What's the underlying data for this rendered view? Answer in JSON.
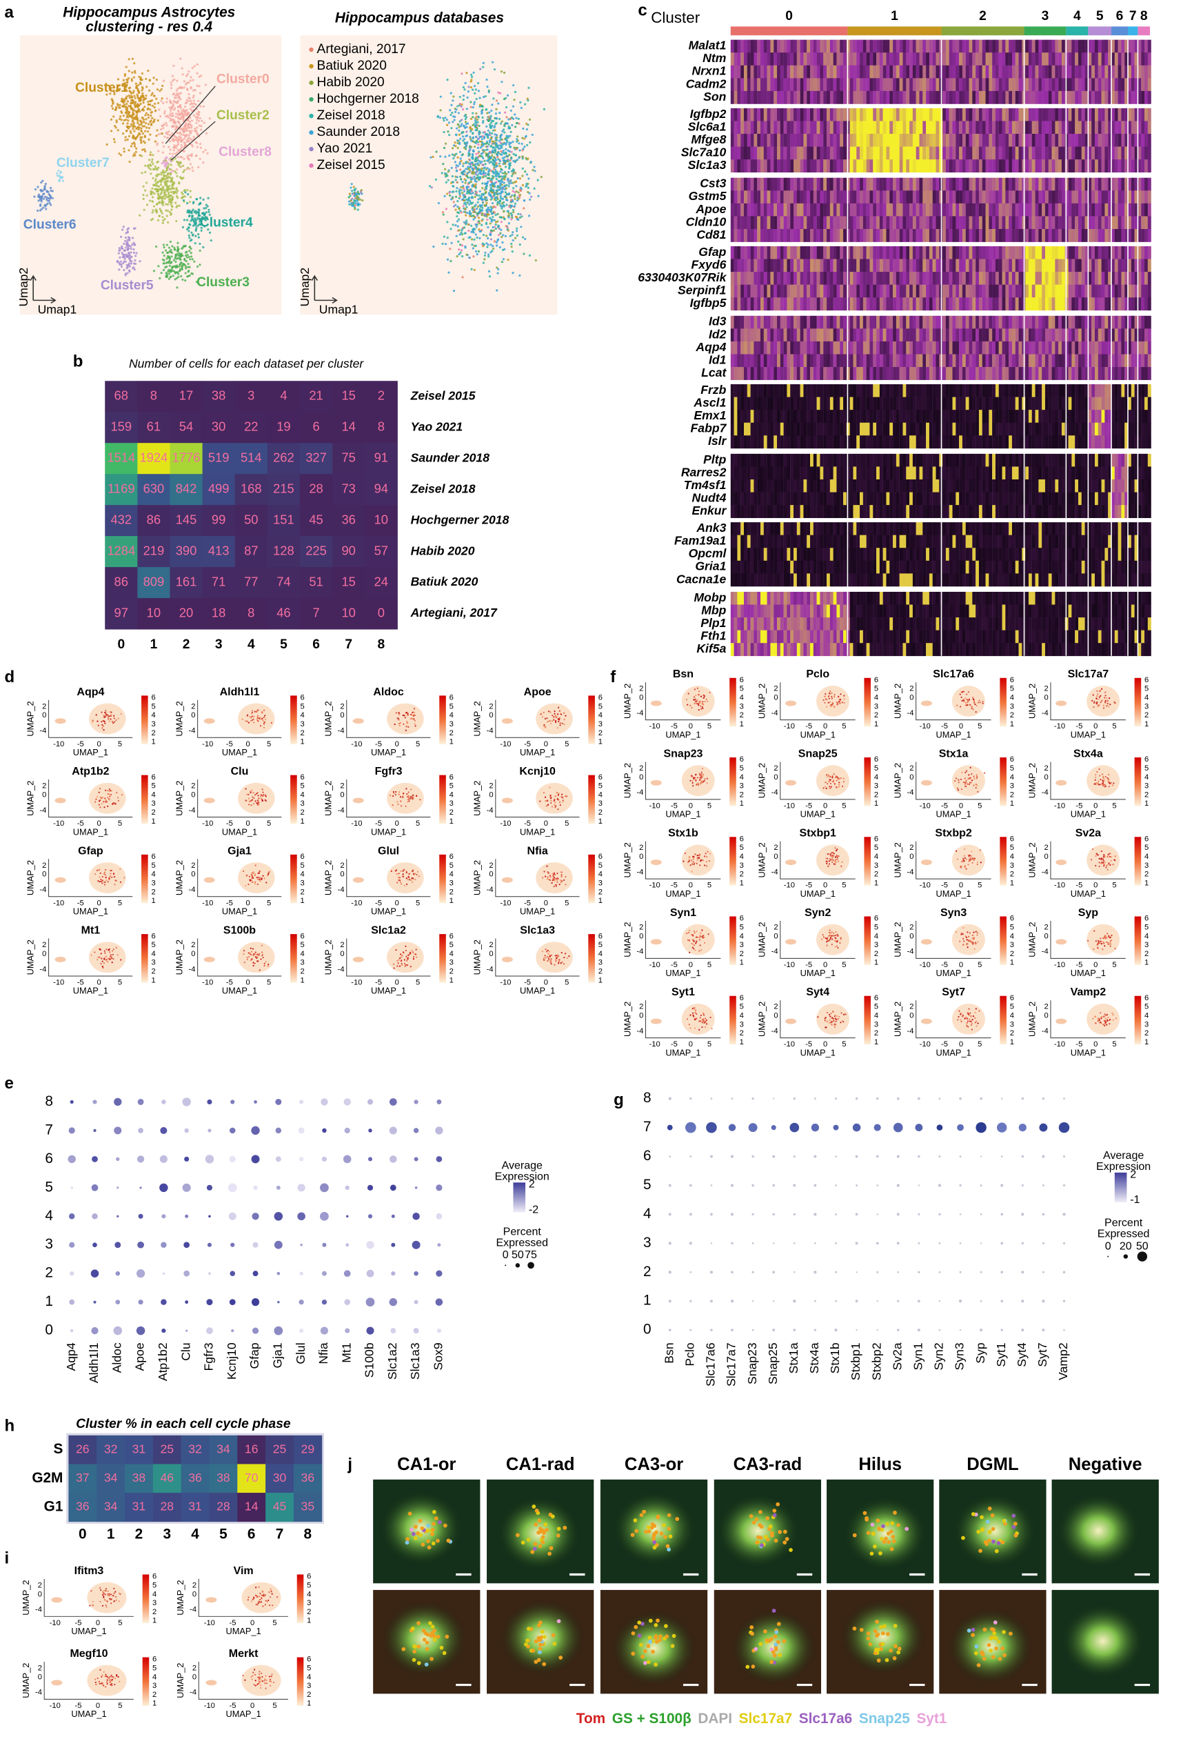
{
  "panel_a": {
    "label": "a",
    "left": {
      "title": [
        "Hippocampus Astrocytes",
        "clustering - res 0.4"
      ],
      "x_axis": "Umap1",
      "y_axis": "Umap2",
      "clusters": [
        {
          "name": "Cluster0",
          "color": "#f4a9a0"
        },
        {
          "name": "Cluster1",
          "color": "#c8901a"
        },
        {
          "name": "Cluster2",
          "color": "#a8bf4c"
        },
        {
          "name": "Cluster3",
          "color": "#4caf50"
        },
        {
          "name": "Cluster4",
          "color": "#22a698"
        },
        {
          "name": "Cluster5",
          "color": "#a78bd0"
        },
        {
          "name": "Cluster6",
          "color": "#5b87c9"
        },
        {
          "name": "Cluster7",
          "color": "#8fd4ee"
        },
        {
          "name": "Cluster8",
          "color": "#e3a6d5"
        }
      ]
    },
    "right": {
      "title": "Hippocampus databases",
      "x_axis": "Umap1",
      "y_axis": "Umap2",
      "datasets": [
        {
          "name": "Artegiani, 2017",
          "color": "#e8836c"
        },
        {
          "name": "Batiuk 2020",
          "color": "#c8961e"
        },
        {
          "name": "Habib 2020",
          "color": "#8aa63c"
        },
        {
          "name": "Hochgerner 2018",
          "color": "#3aaa6c"
        },
        {
          "name": "Zeisel 2018",
          "color": "#30b3a8"
        },
        {
          "name": "Saunder 2018",
          "color": "#3ca3d8"
        },
        {
          "name": "Yao 2021",
          "color": "#9583c9"
        },
        {
          "name": "Zeisel 2015",
          "color": "#e57cb8"
        }
      ]
    }
  },
  "panel_b": {
    "label": "b",
    "title": "Number of cells for each dataset per cluster",
    "columns": [
      0,
      1,
      2,
      3,
      4,
      5,
      6,
      7,
      8
    ],
    "rows": [
      {
        "name": "Zeisel 2015",
        "values": [
          68,
          8,
          17,
          38,
          3,
          4,
          21,
          15,
          2
        ]
      },
      {
        "name": "Yao 2021",
        "values": [
          159,
          61,
          54,
          30,
          22,
          19,
          6,
          14,
          8
        ]
      },
      {
        "name": "Saunder 2018",
        "values": [
          1514,
          1924,
          1776,
          519,
          514,
          262,
          327,
          75,
          91
        ]
      },
      {
        "name": "Zeisel 2018",
        "values": [
          1169,
          630,
          842,
          499,
          168,
          215,
          28,
          73,
          94
        ]
      },
      {
        "name": "Hochgerner 2018",
        "values": [
          432,
          86,
          145,
          99,
          50,
          151,
          45,
          36,
          10
        ]
      },
      {
        "name": "Habib 2020",
        "values": [
          1284,
          219,
          390,
          413,
          87,
          128,
          225,
          90,
          57
        ]
      },
      {
        "name": "Batiuk 2020",
        "values": [
          86,
          809,
          161,
          71,
          77,
          74,
          51,
          15,
          24
        ]
      },
      {
        "name": "Artegiani, 2017",
        "values": [
          97,
          10,
          20,
          18,
          8,
          46,
          7,
          10,
          0
        ]
      }
    ]
  },
  "panel_c": {
    "label": "c",
    "legend_title": "Cluster",
    "clusters": [
      {
        "name": "0",
        "color": "#e8706a"
      },
      {
        "name": "1",
        "color": "#c8961e"
      },
      {
        "name": "2",
        "color": "#8aa63c"
      },
      {
        "name": "3",
        "color": "#3aaa55"
      },
      {
        "name": "4",
        "color": "#2ab3a8"
      },
      {
        "name": "5",
        "color": "#b58ed6"
      },
      {
        "name": "6",
        "color": "#5b8ed8"
      },
      {
        "name": "7",
        "color": "#3ab4e8"
      },
      {
        "name": "8",
        "color": "#e87cc0"
      }
    ],
    "gene_blocks": [
      [
        "Malat1",
        "Ntm",
        "Nrxn1",
        "Cadm2",
        "Son"
      ],
      [
        "Igfbp2",
        "Slc6a1",
        "Mfge8",
        "Slc7a10",
        "Slc1a3"
      ],
      [
        "Cst3",
        "Gstm5",
        "Apoe",
        "Cldn10",
        "Cd81"
      ],
      [
        "Gfap",
        "Fxyd6",
        "6330403K07Rik",
        "Serpinf1",
        "Igfbp5"
      ],
      [
        "Id3",
        "Id2",
        "Aqp4",
        "Id1",
        "Lcat"
      ],
      [
        "Frzb",
        "Ascl1",
        "Emx1",
        "Fabp7",
        "Islr"
      ],
      [
        "Pltp",
        "Rarres2",
        "Tm4sf1",
        "Nudt4",
        "Enkur"
      ],
      [
        "Ank3",
        "Fam19a1",
        "Opcml",
        "Gria1",
        "Cacna1e"
      ],
      [
        "Mobp",
        "Mbp",
        "Plp1",
        "Fth1",
        "Kif5a"
      ]
    ]
  },
  "feature_plot_axes": {
    "x_label": "UMAP_1",
    "y_label": "UMAP_2",
    "x_ticks": [
      -10,
      -5,
      0,
      5
    ],
    "y_ticks": [
      2,
      0,
      -4
    ],
    "colorbar_ticks": [
      6,
      5,
      4,
      3,
      2,
      1
    ]
  },
  "panel_d": {
    "label": "d",
    "genes": [
      "Aqp4",
      "Aldh1l1",
      "Aldoc",
      "Apoe",
      "Atp1b2",
      "Clu",
      "Fgfr3",
      "Kcnj10",
      "Gfap",
      "Gja1",
      "Glul",
      "Nfia",
      "Mt1",
      "S100b",
      "Slc1a2",
      "Slc1a3"
    ]
  },
  "panel_e": {
    "label": "e",
    "clusters": [
      8,
      7,
      6,
      5,
      4,
      3,
      2,
      1,
      0
    ],
    "genes": [
      "Aqp4",
      "Aldh1l1",
      "Aldoc",
      "Apoe",
      "Atp1b2",
      "Clu",
      "Fgfr3",
      "Kcnj10",
      "Gfap",
      "Gja1",
      "Glul",
      "Nfia",
      "Mt1",
      "S100b",
      "Slc1a2",
      "Slc1a3",
      "Sox9"
    ],
    "legend": {
      "color_title": [
        "Average",
        "Expression"
      ],
      "color_ticks": [
        2,
        -2
      ],
      "size_title": [
        "Percent",
        "Expressed"
      ],
      "size_ticks": [
        0,
        50,
        75
      ]
    }
  },
  "panel_f": {
    "label": "f",
    "genes": [
      "Bsn",
      "Pclo",
      "Slc17a6",
      "Slc17a7",
      "Snap23",
      "Snap25",
      "Stx1a",
      "Stx4a",
      "Stx1b",
      "Stxbp1",
      "Stxbp2",
      "Sv2a",
      "Syn1",
      "Syn2",
      "Syn3",
      "Syp",
      "Syt1",
      "Syt4",
      "Syt7",
      "Vamp2"
    ]
  },
  "panel_g": {
    "label": "g",
    "clusters": [
      8,
      7,
      6,
      5,
      4,
      3,
      2,
      1,
      0
    ],
    "genes": [
      "Bsn",
      "Pclo",
      "Slc17a6",
      "Slc17a7",
      "Snap23",
      "Snap25",
      "Stx1a",
      "Stx4a",
      "Stx1b",
      "Stxbp1",
      "Stxbp2",
      "Sv2a",
      "Syn1",
      "Syn2",
      "Syn3",
      "Syp",
      "Syt1",
      "Syt4",
      "Syt7",
      "Vamp2"
    ],
    "legend": {
      "color_title": [
        "Average",
        "Expression"
      ],
      "color_ticks": [
        2,
        -1
      ],
      "size_title": [
        "Percent",
        "Expressed"
      ],
      "size_ticks": [
        0,
        20,
        50
      ]
    }
  },
  "panel_h": {
    "label": "h",
    "title": "Cluster % in each cell cycle phase",
    "columns": [
      0,
      1,
      2,
      3,
      4,
      5,
      6,
      7,
      8
    ],
    "rows": [
      {
        "name": "S",
        "values": [
          26,
          32,
          31,
          25,
          32,
          34,
          16,
          25,
          29
        ]
      },
      {
        "name": "G2M",
        "values": [
          37,
          34,
          38,
          46,
          36,
          38,
          70,
          30,
          36
        ]
      },
      {
        "name": "G1",
        "values": [
          36,
          34,
          31,
          28,
          31,
          28,
          14,
          45,
          35
        ]
      }
    ]
  },
  "panel_i": {
    "label": "i",
    "genes": [
      "Ifitm3",
      "Vim",
      "Megf10",
      "Merkt"
    ]
  },
  "panel_j": {
    "label": "j",
    "regions": [
      "CA1-or",
      "CA1-rad",
      "CA3-or",
      "CA3-rad",
      "Hilus",
      "DGML",
      "Negative"
    ],
    "stains": [
      {
        "name": "Tom",
        "color": "#d42020"
      },
      {
        "name": "GS + S100β",
        "color": "#2aa02a"
      },
      {
        "name": "DAPI",
        "color": "#aaaaaa"
      },
      {
        "name": "Slc17a7",
        "color": "#e0cc10"
      },
      {
        "name": "Slc17a6",
        "color": "#9a5fc0"
      },
      {
        "name": "Snap25",
        "color": "#7ec8e8"
      },
      {
        "name": "Syt1",
        "color": "#e8a0d8"
      }
    ]
  }
}
